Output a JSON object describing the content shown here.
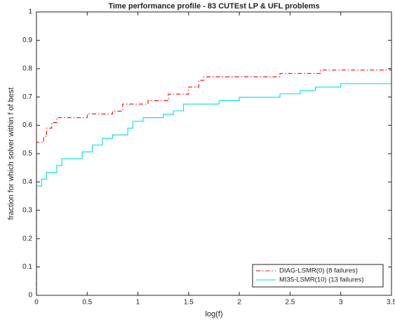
{
  "chart_data": {
    "type": "line",
    "title": "Time performance profile - 83 CUTEst LP & UFL problems",
    "x_label": "log(f)",
    "y_label": "fraction for which solver within f of best",
    "xlim": [
      0,
      3.5
    ],
    "ylim": [
      0,
      1
    ],
    "xticks": [
      0,
      0.5,
      1,
      1.5,
      2,
      2.5,
      3,
      3.5
    ],
    "yticks": [
      0,
      0.1,
      0.2,
      0.3,
      0.4,
      0.5,
      0.6,
      0.7,
      0.8,
      0.9,
      1
    ],
    "grid": false,
    "legend": "lower-right",
    "series": [
      {
        "name": "DIAG-LSMR(0) (8 failures)",
        "color": "#ff0000",
        "dash": "dash-dot",
        "x": [
          0,
          0,
          0.07,
          0.07,
          0.1,
          0.1,
          0.15,
          0.15,
          0.2,
          0.2,
          0.5,
          0.5,
          0.75,
          0.75,
          0.85,
          0.85,
          1.1,
          1.1,
          1.3,
          1.3,
          1.5,
          1.5,
          1.6,
          1.6,
          1.65,
          1.65,
          2.4,
          2.4,
          2.8,
          2.8,
          3.5
        ],
        "values": [
          0,
          0.54,
          0.54,
          0.56,
          0.56,
          0.59,
          0.59,
          0.61,
          0.61,
          0.627,
          0.627,
          0.64,
          0.64,
          0.65,
          0.65,
          0.675,
          0.675,
          0.687,
          0.687,
          0.71,
          0.71,
          0.735,
          0.735,
          0.759,
          0.759,
          0.771,
          0.771,
          0.783,
          0.783,
          0.795,
          0.795
        ]
      },
      {
        "name": "MI35-LSMR(10) (13 failures)",
        "color": "#00e0e0",
        "dash": "solid",
        "x": [
          0,
          0,
          0.05,
          0.05,
          0.1,
          0.1,
          0.2,
          0.2,
          0.25,
          0.25,
          0.45,
          0.45,
          0.55,
          0.55,
          0.65,
          0.65,
          0.75,
          0.75,
          0.9,
          0.9,
          0.95,
          0.95,
          1.05,
          1.05,
          1.25,
          1.25,
          1.35,
          1.35,
          1.45,
          1.45,
          1.8,
          1.8,
          2.0,
          2.0,
          2.4,
          2.4,
          2.6,
          2.6,
          2.75,
          2.75,
          3.0,
          3.0,
          3.5
        ],
        "values": [
          0,
          0.386,
          0.386,
          0.41,
          0.41,
          0.434,
          0.434,
          0.458,
          0.458,
          0.482,
          0.482,
          0.506,
          0.506,
          0.53,
          0.53,
          0.554,
          0.554,
          0.566,
          0.566,
          0.59,
          0.59,
          0.614,
          0.614,
          0.627,
          0.627,
          0.639,
          0.639,
          0.651,
          0.651,
          0.675,
          0.675,
          0.687,
          0.687,
          0.699,
          0.699,
          0.711,
          0.711,
          0.723,
          0.723,
          0.735,
          0.735,
          0.747,
          0.747
        ]
      }
    ]
  }
}
